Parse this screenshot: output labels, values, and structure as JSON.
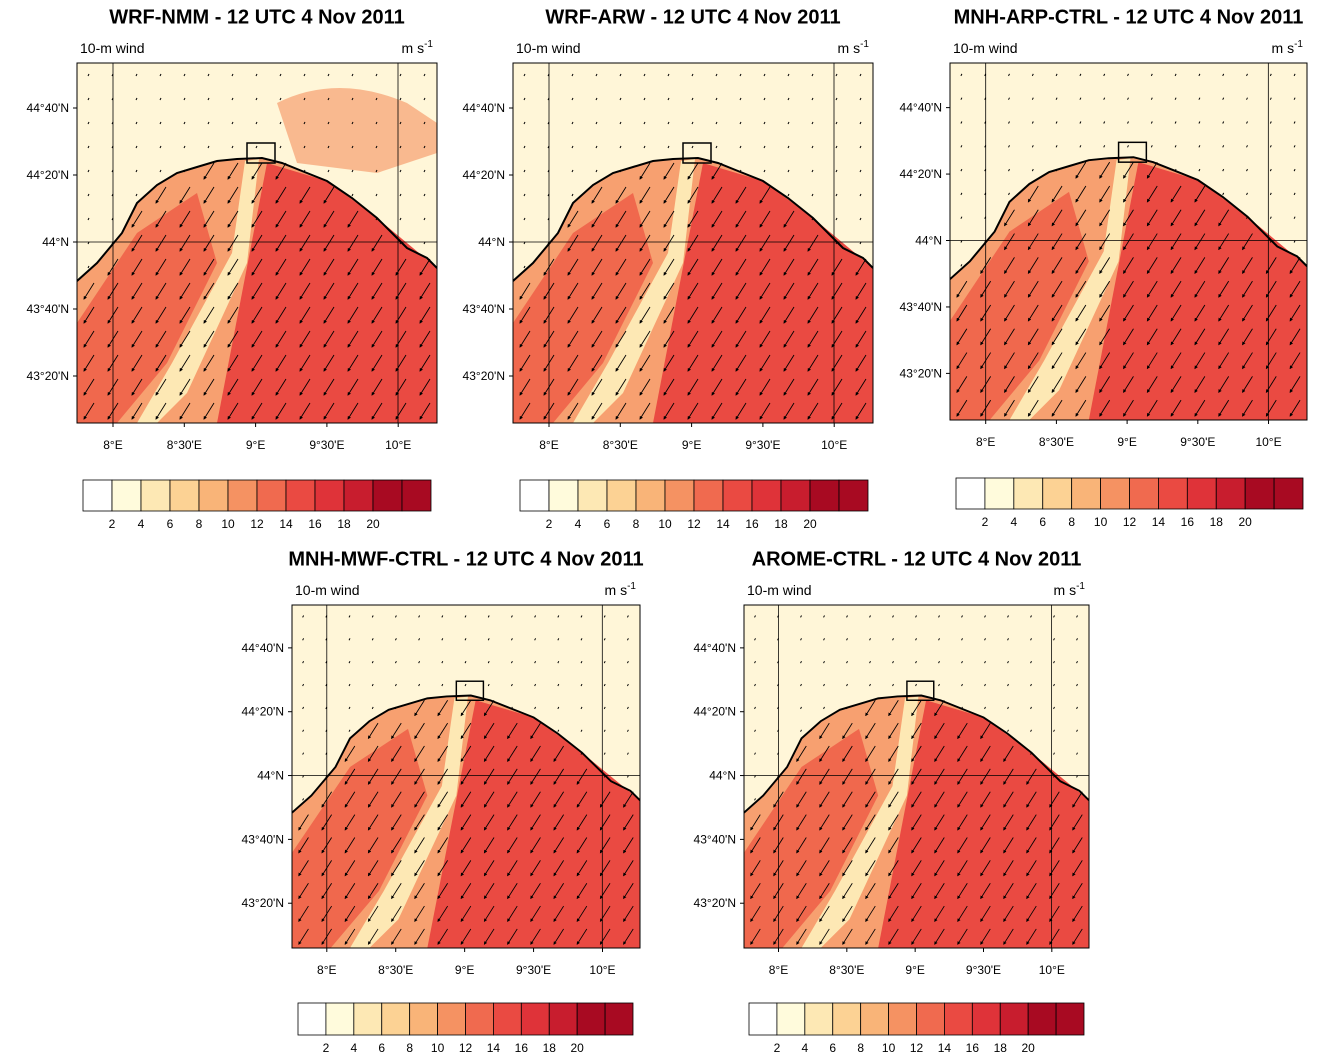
{
  "panels": [
    {
      "title": "WRF-NMM - 12 UTC 4 Nov 2011"
    },
    {
      "title": "WRF-ARW - 12 UTC 4 Nov 2011"
    },
    {
      "title": "MNH-ARP-CTRL - 12 UTC 4 Nov 2011"
    },
    {
      "title": "MNH-MWF-CTRL - 12 UTC 4 Nov 2011"
    },
    {
      "title": "AROME-CTRL - 12 UTC 4 Nov 2011"
    }
  ],
  "field_label": "10-m wind",
  "unit": "m s",
  "unit_exponent": "-1",
  "lat_labels": [
    "44°40'N",
    "44°20'N",
    "44°N",
    "43°40'N",
    "43°20'N"
  ],
  "lon_labels": [
    "8°E",
    "8°30'E",
    "9°E",
    "9°30'E",
    "10°E"
  ],
  "colorbar": {
    "labels": [
      2,
      4,
      6,
      8,
      10,
      12,
      14,
      16,
      18,
      20
    ],
    "colors": [
      "#ffffff",
      "#fffbdc",
      "#fde8b4",
      "#fcd294",
      "#f9b478",
      "#f59262",
      "#f06a4f",
      "#ea4a42",
      "#df3339",
      "#c81d2e",
      "#a80a22",
      "#a80a22"
    ]
  }
}
